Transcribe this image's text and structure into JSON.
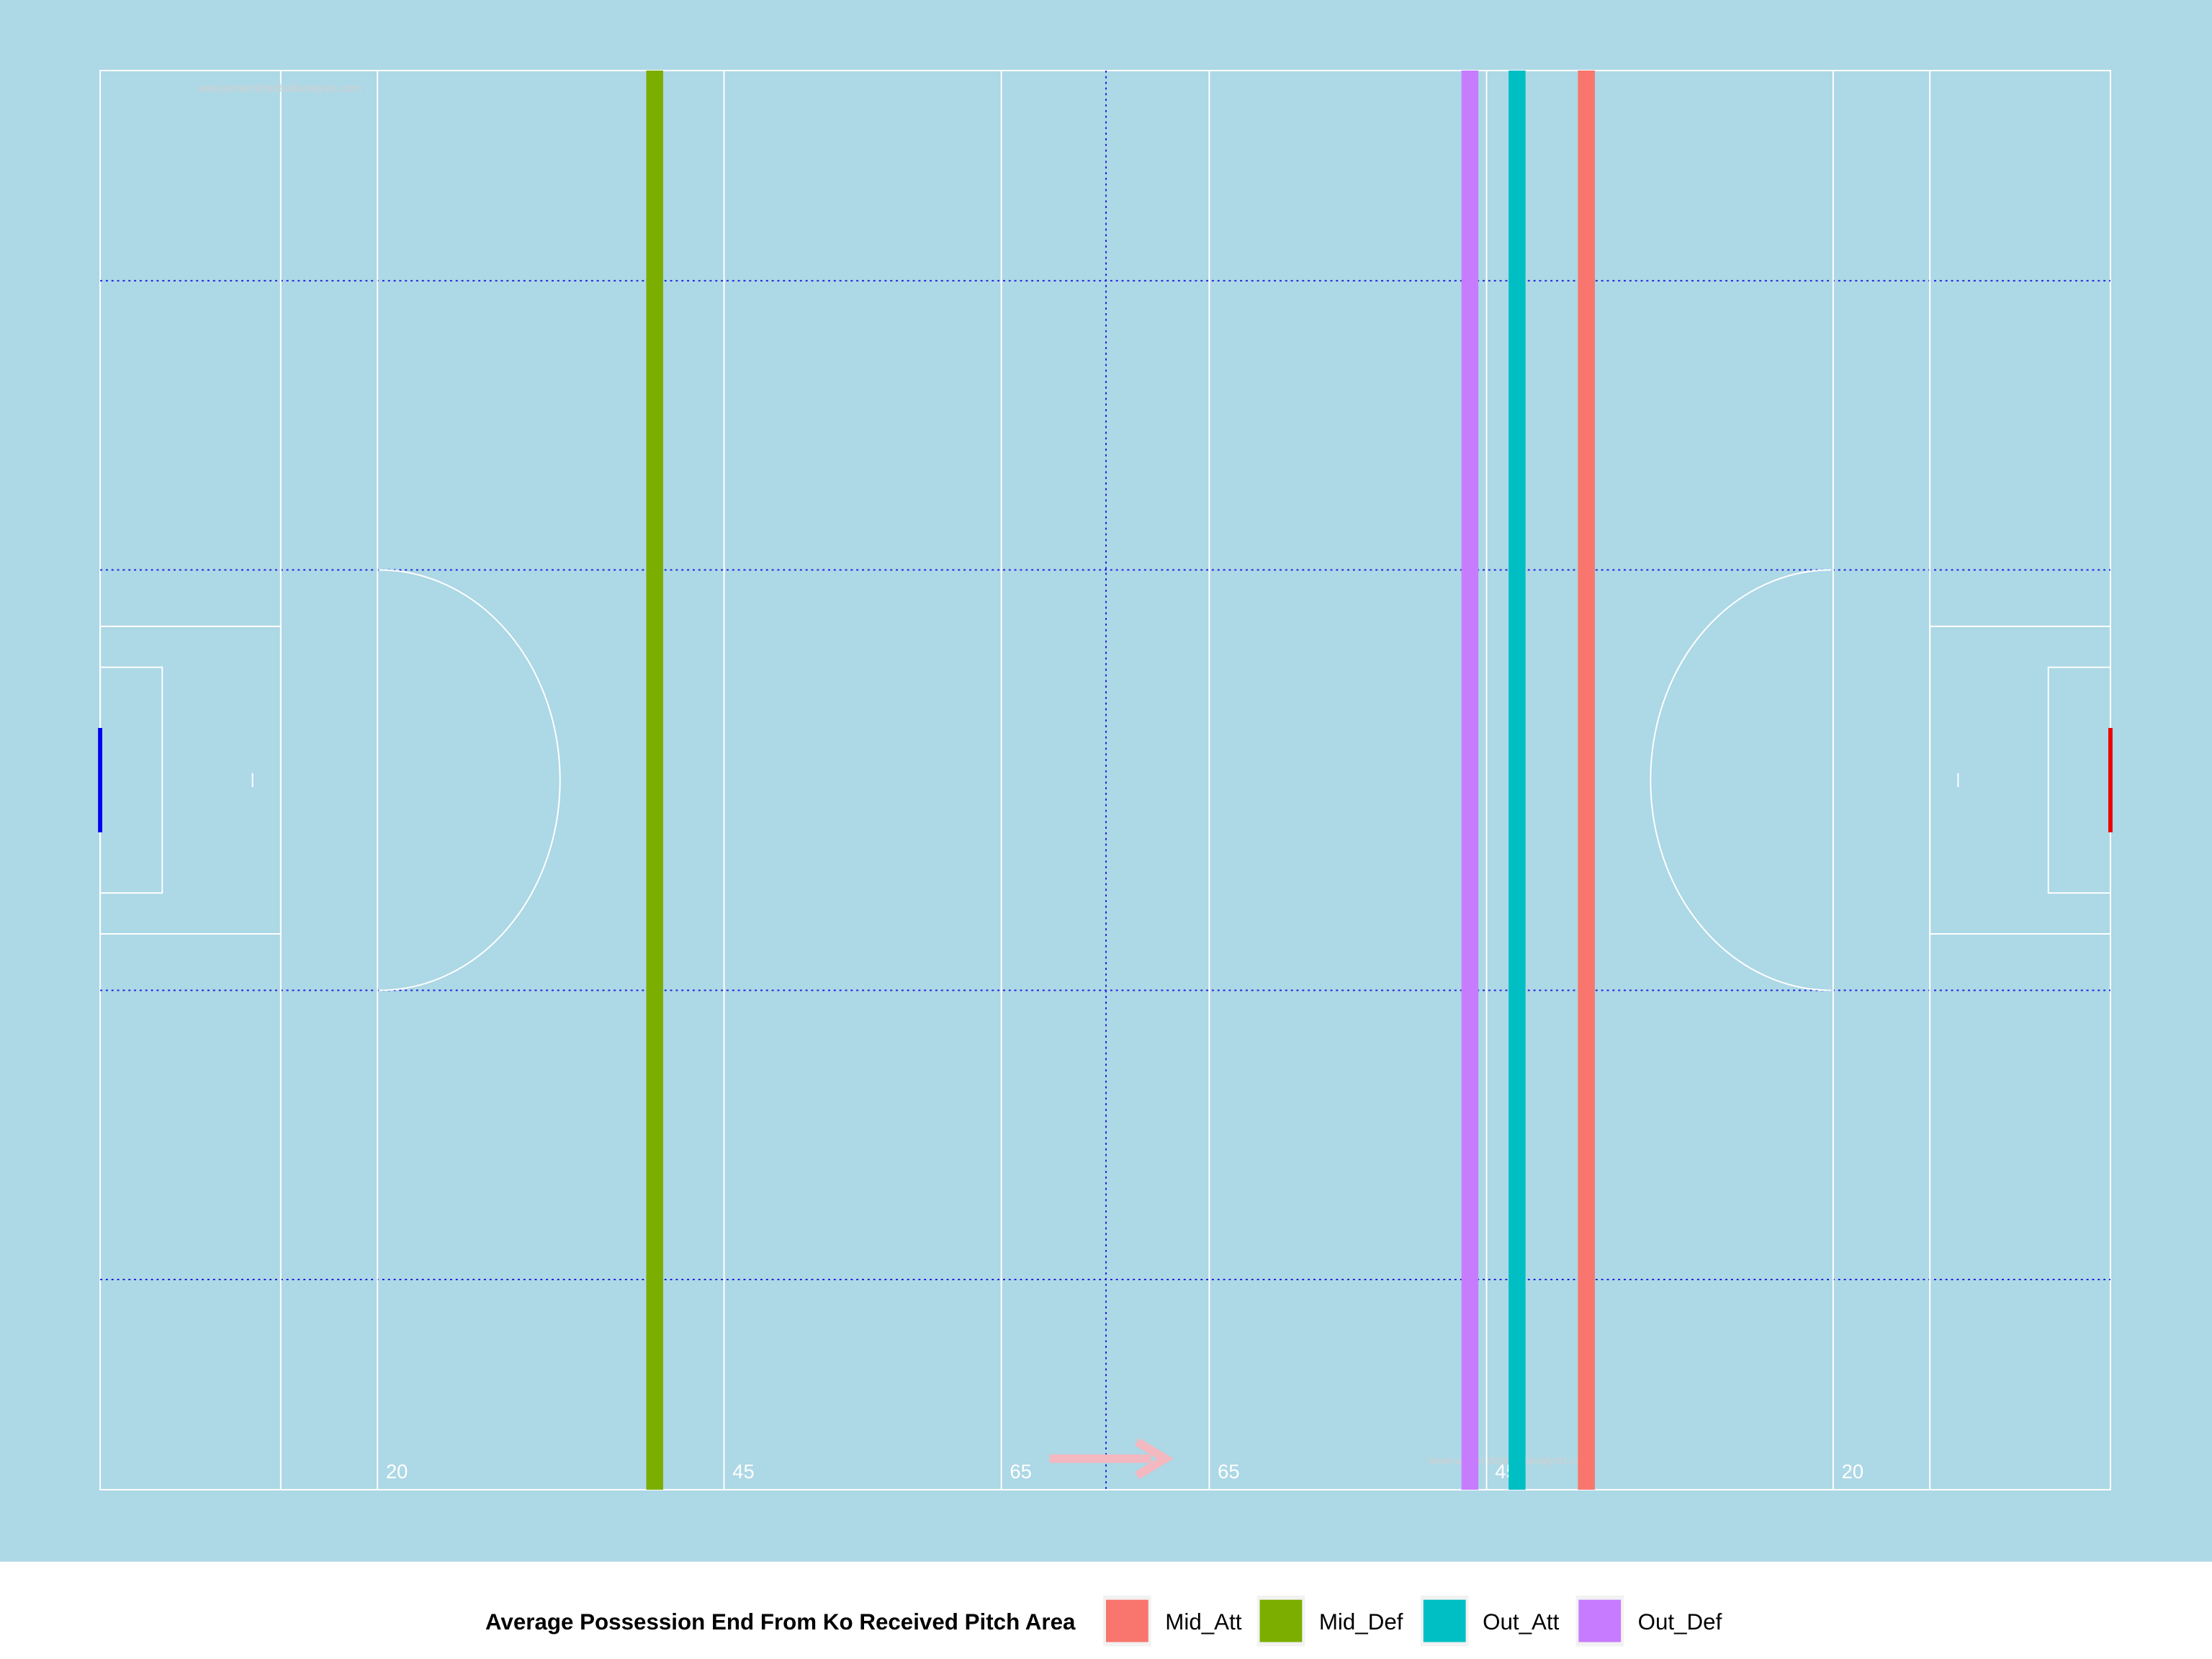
{
  "chart_data": {
    "type": "vline",
    "watermark": "www.wintersfootballanalysis.com",
    "legend_title": "Average Possession End From Ko Received Pitch Area",
    "xlim": [
      0,
      145
    ],
    "xticks": [
      20,
      45,
      65,
      {
        "value": 80,
        "label": "65"
      },
      {
        "value": 100,
        "label": "45"
      },
      {
        "value": 125,
        "label": "20"
      }
    ],
    "series": [
      {
        "name": "Mid_Att",
        "color": "#F8766D",
        "values": [
          107.2
        ]
      },
      {
        "name": "Mid_Def",
        "color": "#7CAE00",
        "values": [
          40
        ]
      },
      {
        "name": "Out_Att",
        "color": "#00BFC4",
        "values": [
          102.2
        ]
      },
      {
        "name": "Out_Def",
        "color": "#C77CFF",
        "values": [
          98.8
        ]
      }
    ],
    "legend": "bottom"
  }
}
